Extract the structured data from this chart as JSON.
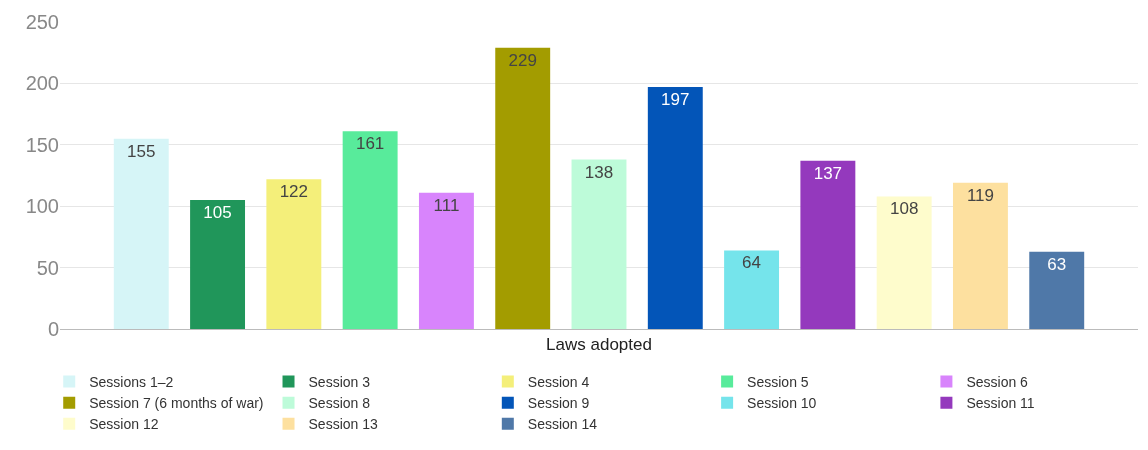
{
  "chart_data": {
    "type": "bar",
    "categories": [
      "Laws adopted"
    ],
    "ylim": [
      0,
      250
    ],
    "yticks": [
      0,
      50,
      100,
      150,
      200,
      250
    ],
    "grid": "y",
    "legend": "bottom",
    "data_labels": true,
    "series": [
      {
        "name": "Sessions 1–2",
        "color": "#d6f5f7",
        "values": [
          155
        ]
      },
      {
        "name": "Session 3",
        "color": "#20965a",
        "values": [
          105
        ]
      },
      {
        "name": "Session 4",
        "color": "#f4ef7a",
        "values": [
          122
        ]
      },
      {
        "name": "Session 5",
        "color": "#58eb9b",
        "values": [
          161
        ]
      },
      {
        "name": "Session 6",
        "color": "#d884fc",
        "values": [
          111
        ]
      },
      {
        "name": "Session 7 (6 months of war)",
        "color": "#a39c00",
        "values": [
          229
        ]
      },
      {
        "name": "Session 8",
        "color": "#bdfbd9",
        "values": [
          138
        ]
      },
      {
        "name": "Session 9",
        "color": "#0355b8",
        "values": [
          197
        ]
      },
      {
        "name": "Session 10",
        "color": "#75e4eb",
        "values": [
          64
        ]
      },
      {
        "name": "Session 11",
        "color": "#9439bd",
        "values": [
          137
        ]
      },
      {
        "name": "Session 12",
        "color": "#fefccc",
        "values": [
          108
        ]
      },
      {
        "name": "Session 13",
        "color": "#fde09f",
        "values": [
          119
        ]
      },
      {
        "name": "Session 14",
        "color": "#4f78a8",
        "values": [
          63
        ]
      }
    ]
  }
}
